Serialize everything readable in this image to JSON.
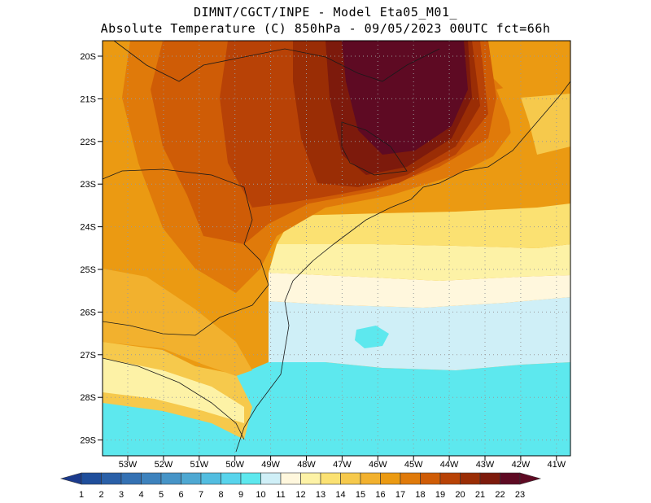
{
  "header": {
    "line1": "DIMNT/CGCT/INPE -  Model Eta05_M01_",
    "line2": "Absolute Temperature (C) 850hPa -  09/05/2023 00UTC fct=66h"
  },
  "map": {
    "lat_labels": [
      "20S",
      "21S",
      "22S",
      "23S",
      "24S",
      "25S",
      "26S",
      "27S",
      "28S",
      "29S"
    ],
    "lon_labels": [
      "53W",
      "52W",
      "51W",
      "50W",
      "49W",
      "48W",
      "47W",
      "46W",
      "45W",
      "44W",
      "43W",
      "42W",
      "41W"
    ],
    "colors": {
      "t9_10": "#5de8ee",
      "t10_11": "#cfeff7",
      "t11_12": "#fff7dd",
      "t12_13": "#fdf2a6",
      "t13_14": "#fbe172",
      "t14_15": "#f6c94c",
      "t15_16": "#f2b12e",
      "t16_17": "#eb9a12",
      "t17_18": "#e07a0a",
      "t18_19": "#cf5c06",
      "t19_20": "#b84206",
      "t20_21": "#9a2d05",
      "t21_22": "#7d1a0c",
      "t22_23": "#5e0a23"
    }
  },
  "colorbar": {
    "labels": [
      "1",
      "2",
      "3",
      "4",
      "5",
      "6",
      "7",
      "8",
      "9",
      "10",
      "11",
      "12",
      "13",
      "14",
      "15",
      "16",
      "17",
      "18",
      "19",
      "20",
      "21",
      "22",
      "23"
    ],
    "colors": [
      "#1b3a8c",
      "#1f4e9b",
      "#2a60a8",
      "#3471b3",
      "#3d82bd",
      "#4694c7",
      "#4ea8d2",
      "#52bde0",
      "#58d4ec",
      "#5de8ee",
      "#cfeff7",
      "#fff7dd",
      "#fdf2a6",
      "#fbe172",
      "#f6c94c",
      "#f2b12e",
      "#eb9a12",
      "#e07a0a",
      "#cf5c06",
      "#b84206",
      "#9a2d05",
      "#7d1a0c",
      "#5e0a23"
    ]
  }
}
